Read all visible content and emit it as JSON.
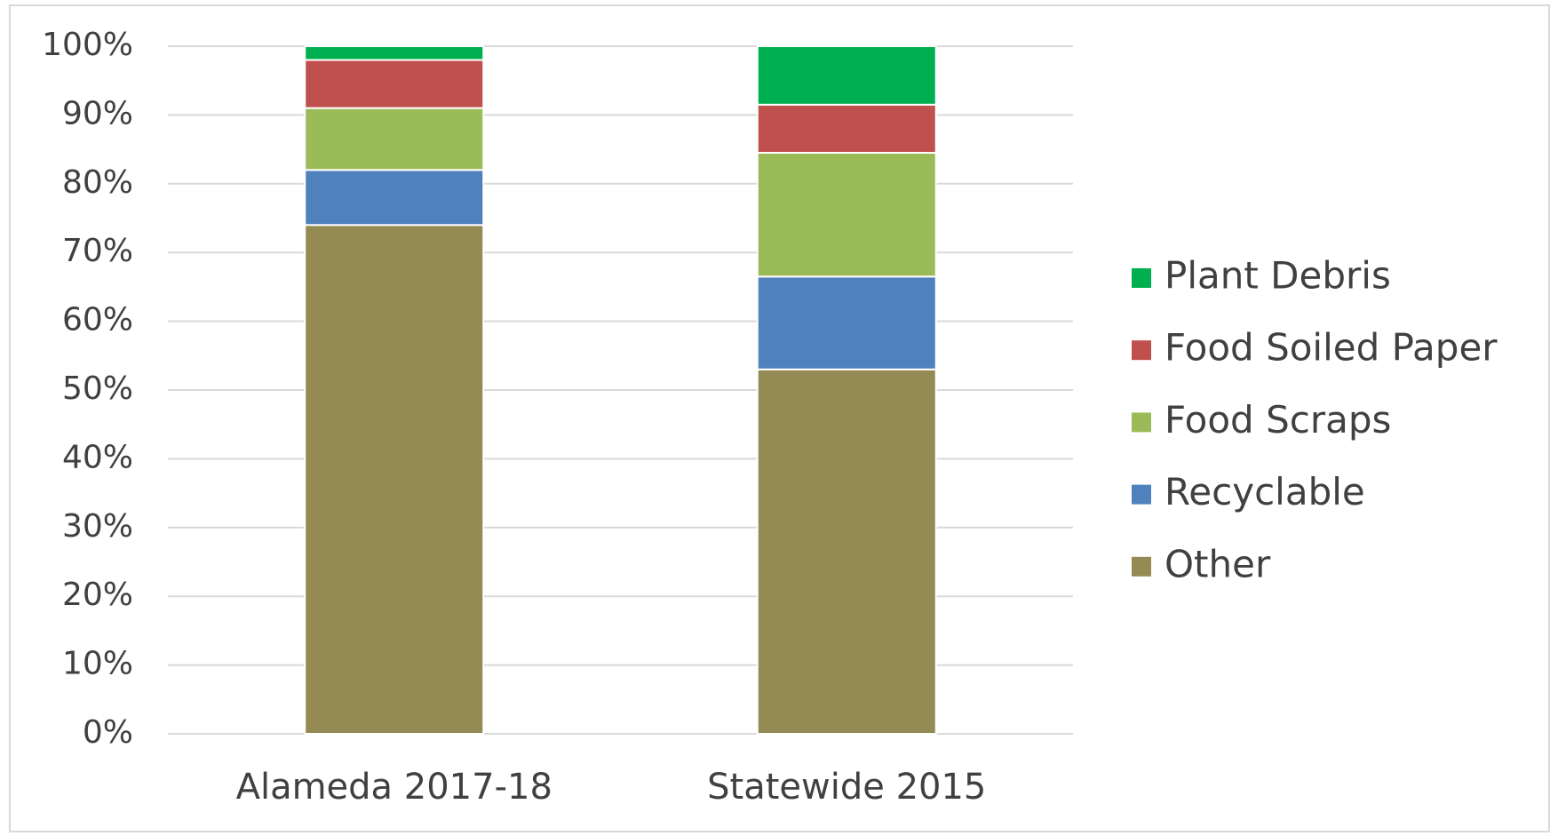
{
  "chart_data": {
    "type": "stacked_bar",
    "categories": [
      "Alameda 2017-18",
      "Statewide 2015"
    ],
    "series": [
      {
        "name": "Other",
        "color": "#948a54",
        "values": [
          74,
          53
        ]
      },
      {
        "name": "Recyclable",
        "color": "#4f81bd",
        "values": [
          8,
          13.5
        ]
      },
      {
        "name": "Food Scraps",
        "color": "#9bbb59",
        "values": [
          9,
          18
        ]
      },
      {
        "name": "Food Soiled Paper",
        "color": "#c0504d",
        "values": [
          7,
          7
        ]
      },
      {
        "name": "Plant Debris",
        "color": "#00b050",
        "values": [
          2,
          8.5
        ]
      }
    ],
    "ylim": [
      0,
      100
    ],
    "yticks": [
      {
        "value": 0,
        "label": "0%"
      },
      {
        "value": 10,
        "label": "10%"
      },
      {
        "value": 20,
        "label": "20%"
      },
      {
        "value": 30,
        "label": "30%"
      },
      {
        "value": 40,
        "label": "40%"
      },
      {
        "value": 50,
        "label": "50%"
      },
      {
        "value": 60,
        "label": "60%"
      },
      {
        "value": 70,
        "label": "70%"
      },
      {
        "value": 80,
        "label": "80%"
      },
      {
        "value": 90,
        "label": "90%"
      },
      {
        "value": 100,
        "label": "100%"
      }
    ],
    "grid": true,
    "legend": "right"
  }
}
